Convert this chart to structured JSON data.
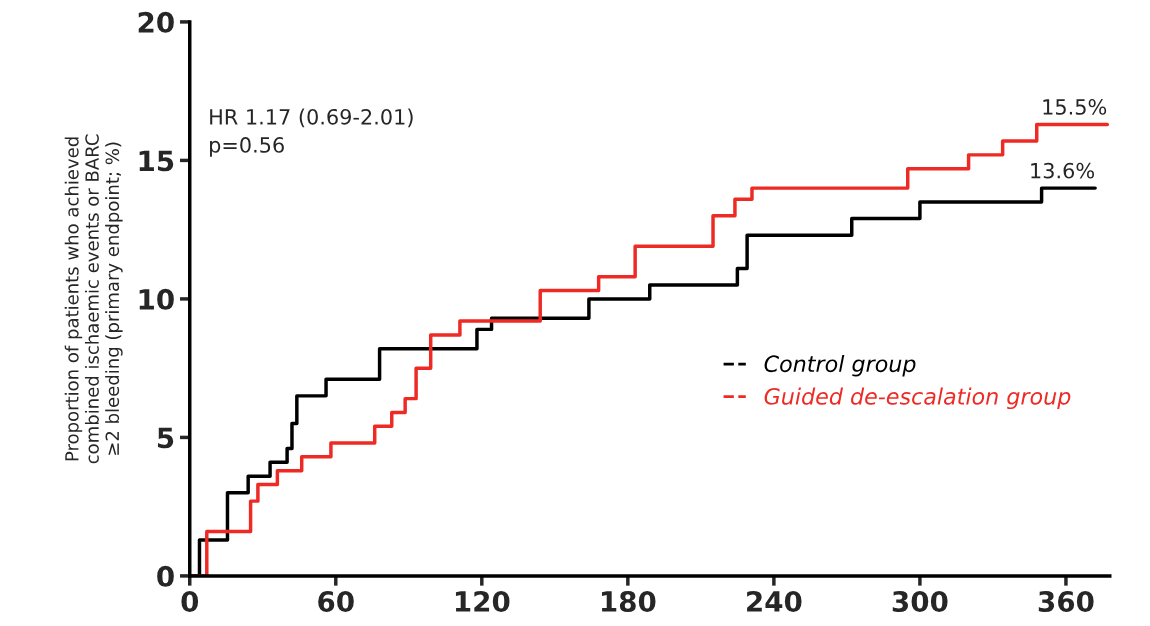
{
  "chart_data": {
    "type": "step",
    "ylabel": "Proportion of patients who achieved\ncombined ischaemic events or BARC\n≥2 bleeding (primary endpoint; %)",
    "xlim": [
      0,
      378
    ],
    "ylim": [
      0,
      20
    ],
    "xticks": [
      0,
      60,
      120,
      180,
      240,
      300,
      360
    ],
    "yticks": [
      0,
      5,
      10,
      15,
      20
    ],
    "grid": false,
    "legend": "right",
    "line_style": "solid",
    "marker": "none",
    "series": [
      {
        "name": "Control group",
        "color": "#000000",
        "x": [
          0,
          4,
          15.5,
          24,
          33,
          40,
          42,
          44,
          56,
          78,
          118,
          124,
          164,
          189,
          225,
          229,
          272,
          300,
          350,
          372
        ],
        "values": [
          0,
          1.3,
          3.0,
          3.6,
          4.1,
          4.6,
          5.5,
          6.5,
          7.1,
          8.2,
          8.9,
          9.3,
          10.0,
          10.5,
          11.1,
          12.3,
          12.9,
          13.5,
          14.0,
          14.0
        ]
      },
      {
        "name": "Guided de-escalation group",
        "color": "#ee2a24",
        "x": [
          0,
          7,
          25,
          28,
          36,
          46,
          58,
          76,
          83,
          88.5,
          93,
          99,
          111,
          144,
          168,
          183,
          215,
          224,
          231,
          295,
          320,
          334,
          348,
          377
        ],
        "values": [
          0,
          1.6,
          2.7,
          3.3,
          3.8,
          4.3,
          4.8,
          5.4,
          5.9,
          6.4,
          7.5,
          8.7,
          9.2,
          10.3,
          10.8,
          11.9,
          13.0,
          13.6,
          14.0,
          14.7,
          15.2,
          15.7,
          16.3,
          16.3
        ]
      }
    ],
    "annotations": [
      "HR 1.17 (0.69-2.01)\np=0.56",
      {
        "text": "15.5%",
        "x": 377,
        "y": 16.3
      },
      {
        "text": "13.6%",
        "x": 372,
        "y": 14.0
      }
    ]
  }
}
